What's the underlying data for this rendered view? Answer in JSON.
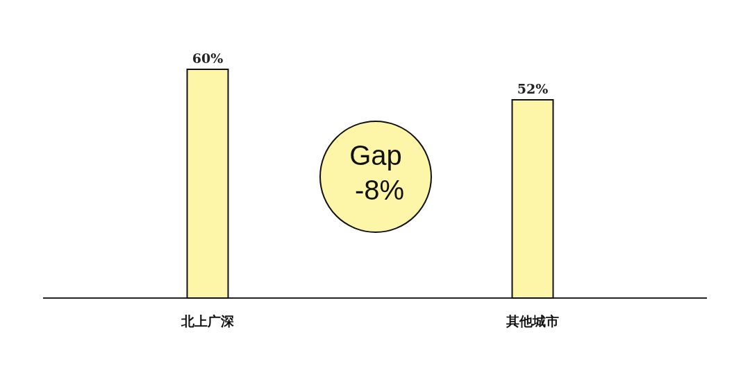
{
  "chart_data": {
    "type": "bar",
    "categories": [
      "北上广深",
      "其他城市"
    ],
    "values": [
      60,
      52
    ],
    "value_labels": [
      "60%",
      "52%"
    ],
    "color": "#fdf5a8",
    "annotations": [
      "Gap -8%"
    ]
  }
}
